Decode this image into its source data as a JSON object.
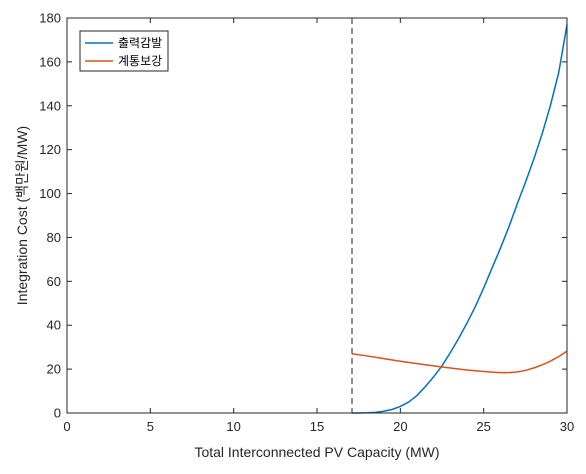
{
  "chart_data": {
    "type": "line",
    "xlabel": "Total Interconnected PV Capacity (MW)",
    "ylabel": "Integration Cost (백만원/MW)",
    "xlim": [
      0,
      30
    ],
    "ylim": [
      0,
      180
    ],
    "xticks": [
      "0",
      "5",
      "10",
      "15",
      "20",
      "25",
      "30"
    ],
    "yticks": [
      "0",
      "20",
      "40",
      "60",
      "80",
      "100",
      "120",
      "140",
      "160",
      "180"
    ],
    "grid": false,
    "legend_position": "top-left",
    "vline": {
      "x": 17.1,
      "style": "dashed"
    },
    "series": [
      {
        "name": "출력감발",
        "color": "#0072BD",
        "x": [
          17.1,
          17.5,
          18,
          18.5,
          19,
          19.5,
          20,
          20.5,
          21,
          21.5,
          22,
          22.5,
          23,
          23.5,
          24,
          24.5,
          25,
          25.5,
          26,
          26.5,
          27,
          27.5,
          28,
          28.5,
          29,
          29.5,
          30
        ],
        "y": [
          0,
          0,
          0.1,
          0.3,
          0.8,
          1.6,
          3,
          5,
          8,
          12,
          16.5,
          21.5,
          27.5,
          34,
          41,
          48.5,
          57,
          66,
          75,
          84.5,
          95,
          105,
          115.5,
          127,
          140,
          155,
          177
        ]
      },
      {
        "name": "계통보강",
        "color": "#D95319",
        "x": [
          17.1,
          18,
          19,
          20,
          21,
          22,
          23,
          24,
          25,
          25.5,
          26,
          26.5,
          27,
          27.5,
          28,
          28.5,
          29,
          29.5,
          30
        ],
        "y": [
          27,
          26,
          24.8,
          23.6,
          22.5,
          21.5,
          20.5,
          19.6,
          18.9,
          18.6,
          18.4,
          18.4,
          18.7,
          19.4,
          20.5,
          21.9,
          23.6,
          25.7,
          28.2
        ]
      }
    ]
  }
}
